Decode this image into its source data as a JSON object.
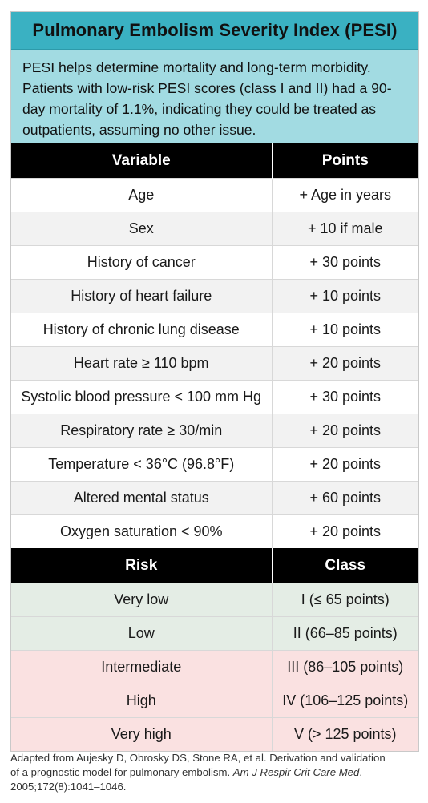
{
  "title": "Pulmonary Embolism Severity Index (PESI)",
  "intro": "PESI helps determine mortality and long-term morbidity. Patients with low-risk PESI scores (class I and II) had a 90-day mortality of 1.1%, indicating they could be treated as outpatients, assuming no other issue.",
  "variables_table": {
    "headers": [
      "Variable",
      "Points"
    ],
    "rows": [
      {
        "variable": "Age",
        "points": "+ Age in years"
      },
      {
        "variable": "Sex",
        "points": "+ 10 if male"
      },
      {
        "variable": "History of cancer",
        "points": "+ 30 points"
      },
      {
        "variable": "History of heart failure",
        "points": "+ 10 points"
      },
      {
        "variable": "History of chronic lung disease",
        "points": "+ 10 points"
      },
      {
        "variable": "Heart rate ≥ 110 bpm",
        "points": "+ 20 points"
      },
      {
        "variable": "Systolic blood pressure < 100 mm Hg",
        "points": "+ 30 points"
      },
      {
        "variable": "Respiratory rate ≥ 30/min",
        "points": "+ 20 points"
      },
      {
        "variable": "Temperature < 36°C (96.8°F)",
        "points": "+ 20 points"
      },
      {
        "variable": "Altered mental status",
        "points": "+ 60 points"
      },
      {
        "variable": "Oxygen saturation < 90%",
        "points": "+ 20 points"
      }
    ]
  },
  "risk_table": {
    "headers": [
      "Risk",
      "Class"
    ],
    "rows": [
      {
        "risk": "Very low",
        "class": "I (≤ 65 points)",
        "level": "low"
      },
      {
        "risk": "Low",
        "class": "II (66–85 points)",
        "level": "low"
      },
      {
        "risk": "Intermediate",
        "class": "III (86–105 points)",
        "level": "high"
      },
      {
        "risk": "High",
        "class": "IV (106–125 points)",
        "level": "high"
      },
      {
        "risk": "Very high",
        "class": "V (> 125 points)",
        "level": "high"
      }
    ]
  },
  "footnote": {
    "text_before": "Adapted from Aujesky D, Obrosky DS, Stone RA, et al. Derivation and validation of a prognostic model for pulmonary embolism. ",
    "journal": "Am J Respir Crit Care Med",
    "text_after": ". 2005;172(8):1041–1046."
  },
  "colors": {
    "title_bg": "#3ab1c2",
    "intro_bg": "#a2dbe2",
    "header_bg": "#000000",
    "row_alt": "#f2f2f2",
    "low_risk_bg": "#e4ede5",
    "high_risk_bg": "#fae1e1"
  }
}
